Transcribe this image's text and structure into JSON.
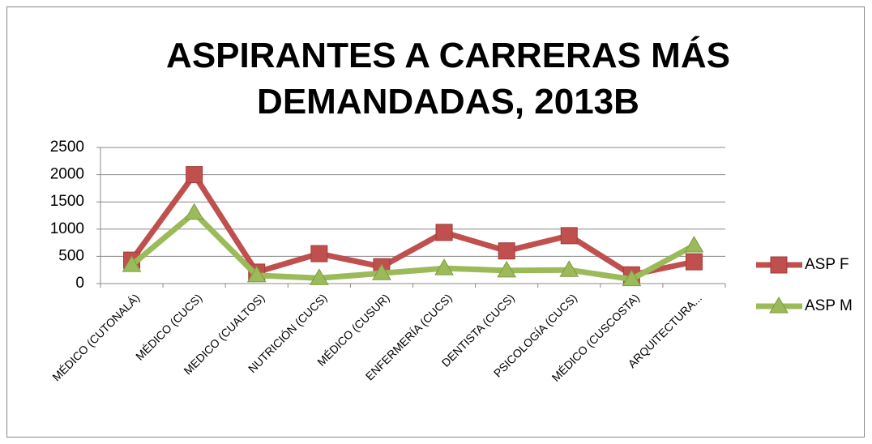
{
  "chart_data": {
    "type": "line",
    "title": "ASPIRANTES A CARRERAS MÁS DEMANDADAS, 2013B",
    "categories": [
      "MÉDICO (CUTONALÁ)",
      "MÉDICO (CUCS)",
      "MEDICO (CUALTOS)",
      "NUTRICIÓN (CUCS)",
      "MÉDICO (CUSUR)",
      "ENFERMERÍA (CUCS)",
      "DENTISTA (CUCS)",
      "PSICOLOGÍA (CUCS)",
      "MÉDICO (CUSCOSTA)",
      "ARQUITECTURA..."
    ],
    "series": [
      {
        "name": "ASP F",
        "color": "#c0504d",
        "marker": "square",
        "values": [
          430,
          2000,
          210,
          550,
          310,
          940,
          600,
          880,
          160,
          400
        ]
      },
      {
        "name": "ASP M",
        "color": "#9bbb59",
        "marker": "triangle",
        "values": [
          340,
          1300,
          150,
          100,
          190,
          280,
          240,
          250,
          80,
          700
        ]
      }
    ],
    "ylim": [
      0,
      2500
    ],
    "yticks": [
      0,
      500,
      1000,
      1500,
      2000,
      2500
    ],
    "grid": true,
    "legend": "right"
  }
}
